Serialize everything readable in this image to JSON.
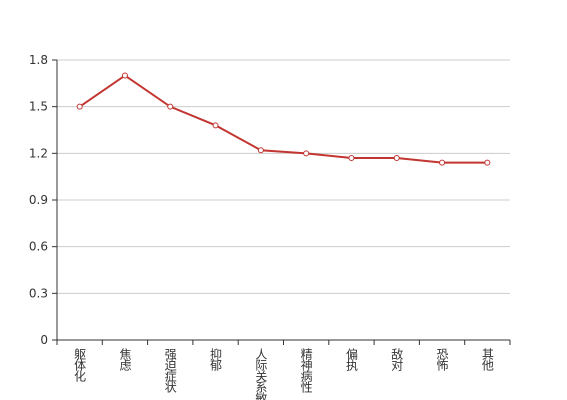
{
  "chart_data": {
    "type": "line",
    "categories": [
      "躯体化",
      "焦虑",
      "强迫症状",
      "抑郁",
      "人际关系敏感",
      "精神病性",
      "偏执",
      "敌对",
      "恐怖",
      "其他"
    ],
    "values": [
      1.5,
      1.7,
      1.5,
      1.38,
      1.22,
      1.2,
      1.17,
      1.17,
      1.14,
      1.14
    ],
    "color": "#c23531",
    "ylim": [
      0,
      1.8
    ],
    "yticks": [
      0,
      0.3,
      0.6,
      0.9,
      1.2,
      1.5,
      1.8
    ],
    "grid": true
  }
}
